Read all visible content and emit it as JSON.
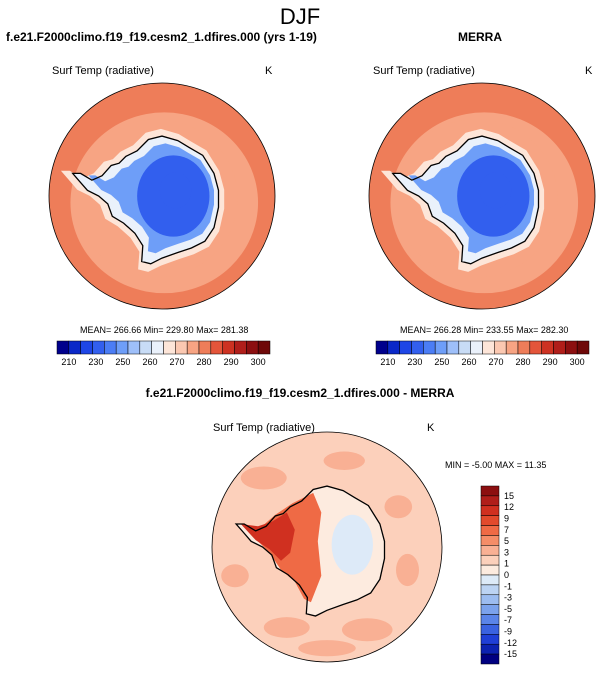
{
  "page": {
    "title": "DJF"
  },
  "colors": {
    "land_outline": "#000000",
    "background": "#ffffff"
  },
  "panels": [
    {
      "title": "f.e21.F2000climo.f19_f19.cesm2_1.dfires.000 (yrs 1-19)",
      "variable": "Surf Temp (radiative)",
      "units": "K",
      "stats": "MEAN= 266.66  Min= 229.80  Max= 281.38"
    },
    {
      "title": "MERRA",
      "variable": "Surf Temp (radiative)",
      "units": "K",
      "stats": "MEAN= 266.28  Min= 233.55  Max= 282.30"
    },
    {
      "title": "f.e21.F2000climo.f19_f19.cesm2_1.dfires.000 - MERRA",
      "variable": "Surf Temp (radiative)",
      "units": "K",
      "stats": "MIN =  -5.00 MAX =  11.35"
    }
  ],
  "chart_data": [
    {
      "type": "heatmap",
      "subtype": "polar-stereographic-map",
      "region": "Antarctica / Southern Ocean",
      "title": "f.e21.F2000climo.f19_f19.cesm2_1.dfires.000 (yrs 1-19)",
      "variable": "Surf Temp (radiative)",
      "units": "K",
      "mean": 266.66,
      "min": 229.8,
      "max": 281.38,
      "colorbar": {
        "orientation": "horizontal",
        "tick_labels": [
          "210",
          "230",
          "250",
          "260",
          "270",
          "280",
          "290",
          "300"
        ],
        "colors": [
          "#00008c",
          "#0a28c8",
          "#1e46e6",
          "#325fee",
          "#4b7df5",
          "#6e9ef8",
          "#9ebff9",
          "#c8dcf6",
          "#eaf1fb",
          "#fde5d8",
          "#fbc8b1",
          "#f7a483",
          "#ee7d59",
          "#e4553a",
          "#cd3222",
          "#b01e1a",
          "#8c0f10",
          "#6e0808"
        ]
      },
      "field_levels": {
        "ocean_outer": 280,
        "ocean": 275,
        "sea_ice": 268,
        "coast": 262,
        "plateau_edge": 245,
        "plateau": 235,
        "interior_min": 230
      }
    },
    {
      "type": "heatmap",
      "subtype": "polar-stereographic-map",
      "region": "Antarctica / Southern Ocean",
      "title": "MERRA",
      "variable": "Surf Temp (radiative)",
      "units": "K",
      "mean": 266.28,
      "min": 233.55,
      "max": 282.3,
      "colorbar": {
        "orientation": "horizontal",
        "tick_labels": [
          "210",
          "230",
          "250",
          "260",
          "270",
          "280",
          "290",
          "300"
        ],
        "colors": [
          "#00008c",
          "#0a28c8",
          "#1e46e6",
          "#325fee",
          "#4b7df5",
          "#6e9ef8",
          "#9ebff9",
          "#c8dcf6",
          "#eaf1fb",
          "#fde5d8",
          "#fbc8b1",
          "#f7a483",
          "#ee7d59",
          "#e4553a",
          "#cd3222",
          "#b01e1a",
          "#8c0f10",
          "#6e0808"
        ]
      },
      "field_levels": {
        "ocean_outer": 280,
        "ocean": 275,
        "sea_ice": 268,
        "coast": 262,
        "plateau_edge": 245,
        "plateau": 235,
        "interior_min": 234
      }
    },
    {
      "type": "heatmap",
      "subtype": "polar-stereographic-map",
      "region": "Antarctica / Southern Ocean",
      "title": "f.e21.F2000climo.f19_f19.cesm2_1.dfires.000 - MERRA",
      "variable": "Surf Temp (radiative)",
      "units": "K",
      "min": -5.0,
      "max": 11.35,
      "colorbar": {
        "orientation": "vertical",
        "tick_labels": [
          "15",
          "12",
          "9",
          "7",
          "5",
          "3",
          "1",
          "0",
          "-1",
          "-3",
          "-5",
          "-7",
          "-9",
          "-12",
          "-15"
        ],
        "colors": [
          "#8c0f10",
          "#b01e1a",
          "#d03020",
          "#e24a2c",
          "#ef6a45",
          "#f58d68",
          "#f9b094",
          "#fcd0bb",
          "#fdebdf",
          "#ddeaf8",
          "#bcd3f3",
          "#9cbcf0",
          "#7ba2ec",
          "#5a84e8",
          "#3a62e0",
          "#1f3fd6",
          "#0c22b0",
          "#000080"
        ]
      },
      "field_levels": {
        "ocean": 0,
        "ocean_patches": 1,
        "east_antarctica": -1,
        "east_interior": -3,
        "west_antarctica": 5,
        "antarctic_peninsula": 9
      }
    }
  ]
}
